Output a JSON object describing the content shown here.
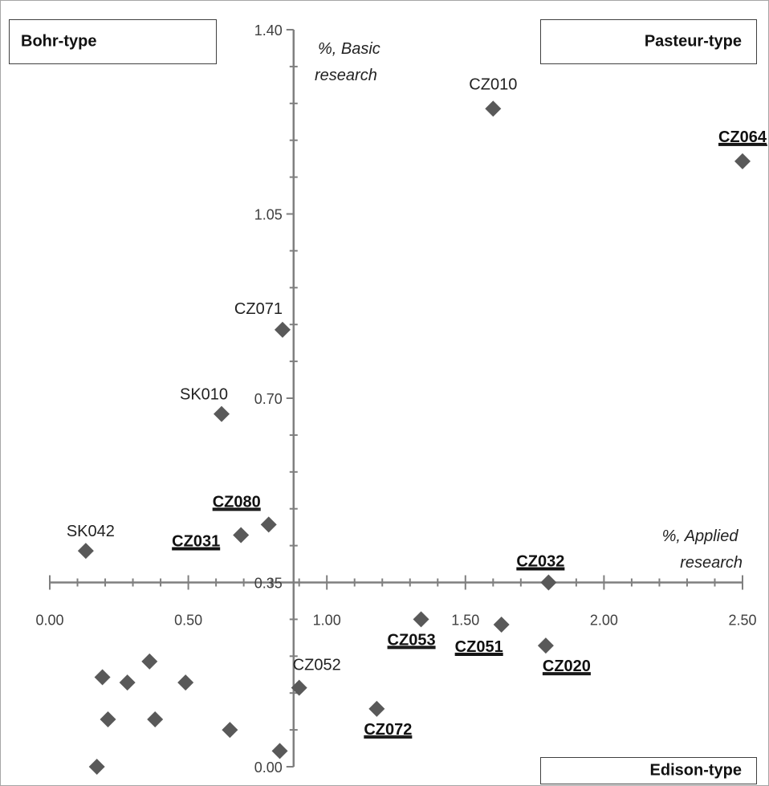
{
  "quadrants": {
    "top_left": "Bohr-type",
    "top_right": "Pasteur-type",
    "bottom_right": "Edison-type"
  },
  "chart_data": {
    "type": "scatter",
    "xlabel": "%, Applied\nresearch",
    "ylabel": "%, Basic\nresearch",
    "xlim": [
      0.0,
      2.5
    ],
    "ylim": [
      0.0,
      1.4
    ],
    "x_ticks": [
      "0.00",
      "0.50",
      "1.00",
      "1.50",
      "2.00",
      "2.50"
    ],
    "y_ticks": [
      "0.00",
      "0.35",
      "0.70",
      "1.05",
      "1.40"
    ],
    "axis_crossing": {
      "x": 0.88,
      "y": 0.35
    },
    "marker_color": "#595959",
    "points": [
      {
        "label": "CZ010",
        "x": 1.6,
        "y": 1.25,
        "bold": false
      },
      {
        "label": "CZ064",
        "x": 2.5,
        "y": 1.15,
        "bold": true
      },
      {
        "label": "CZ071",
        "x": 0.84,
        "y": 0.83,
        "bold": false
      },
      {
        "label": "SK010",
        "x": 0.62,
        "y": 0.67,
        "bold": false
      },
      {
        "label": "CZ080",
        "x": 0.79,
        "y": 0.46,
        "bold": true
      },
      {
        "label": "CZ031",
        "x": 0.69,
        "y": 0.44,
        "bold": true
      },
      {
        "label": "SK042",
        "x": 0.13,
        "y": 0.41,
        "bold": false
      },
      {
        "label": "CZ032",
        "x": 1.8,
        "y": 0.35,
        "bold": true
      },
      {
        "label": "CZ053",
        "x": 1.34,
        "y": 0.28,
        "bold": true
      },
      {
        "label": "CZ051",
        "x": 1.63,
        "y": 0.27,
        "bold": true
      },
      {
        "label": "CZ020",
        "x": 1.79,
        "y": 0.23,
        "bold": true
      },
      {
        "label": "CZ052",
        "x": 0.9,
        "y": 0.15,
        "bold": false
      },
      {
        "label": "CZ072",
        "x": 1.18,
        "y": 0.11,
        "bold": true
      },
      {
        "label": "",
        "x": 0.36,
        "y": 0.2,
        "bold": false
      },
      {
        "label": "",
        "x": 0.19,
        "y": 0.17,
        "bold": false
      },
      {
        "label": "",
        "x": 0.28,
        "y": 0.16,
        "bold": false
      },
      {
        "label": "",
        "x": 0.49,
        "y": 0.16,
        "bold": false
      },
      {
        "label": "",
        "x": 0.21,
        "y": 0.09,
        "bold": false
      },
      {
        "label": "",
        "x": 0.38,
        "y": 0.09,
        "bold": false
      },
      {
        "label": "",
        "x": 0.65,
        "y": 0.07,
        "bold": false
      },
      {
        "label": "",
        "x": 0.83,
        "y": 0.03,
        "bold": false
      },
      {
        "label": "",
        "x": 0.17,
        "y": 0.0,
        "bold": false
      }
    ]
  }
}
